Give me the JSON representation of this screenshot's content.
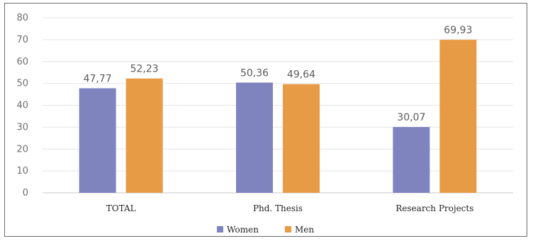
{
  "chart_data": {
    "type": "bar",
    "categories": [
      "TOTAL",
      "Phd. Thesis",
      "Research Projects"
    ],
    "series": [
      {
        "name": "Women",
        "values": [
          47.77,
          50.36,
          30.07
        ],
        "labels": [
          "47,77",
          "50,36",
          "30,07"
        ],
        "color": "#7f84bf"
      },
      {
        "name": "Men",
        "values": [
          52.23,
          49.64,
          69.93
        ],
        "labels": [
          "52,23",
          "49,64",
          "69,93"
        ],
        "color": "#e89b45"
      }
    ],
    "title": "",
    "xlabel": "",
    "ylabel": "",
    "ylim": [
      0,
      80
    ],
    "yticks": [
      "0",
      "10",
      "20",
      "30",
      "40",
      "50",
      "60",
      "70",
      "80"
    ],
    "grid": true,
    "legend_position": "bottom"
  }
}
